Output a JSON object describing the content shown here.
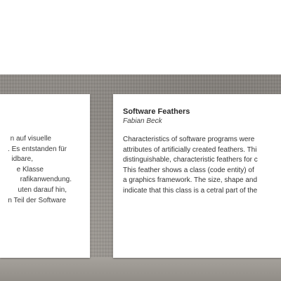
{
  "left_card": {
    "lines": [
      "n auf visuelle",
      ". Es entstanden für",
      "idbare,",
      "e Klasse",
      "rafikanwendung.",
      "uten darauf hin,",
      "n Teil der Software"
    ]
  },
  "right_card": {
    "title": "Software Feathers",
    "author": "Fabian Beck",
    "lines": [
      "Characteristics of software programs were",
      "attributes of artificially created feathers. Thi",
      "distinguishable, characteristic feathers for c",
      "This feather shows a class (code entity) of",
      "a graphics framework. The size, shape and",
      "indicate that this class is a cetral part of the"
    ]
  }
}
